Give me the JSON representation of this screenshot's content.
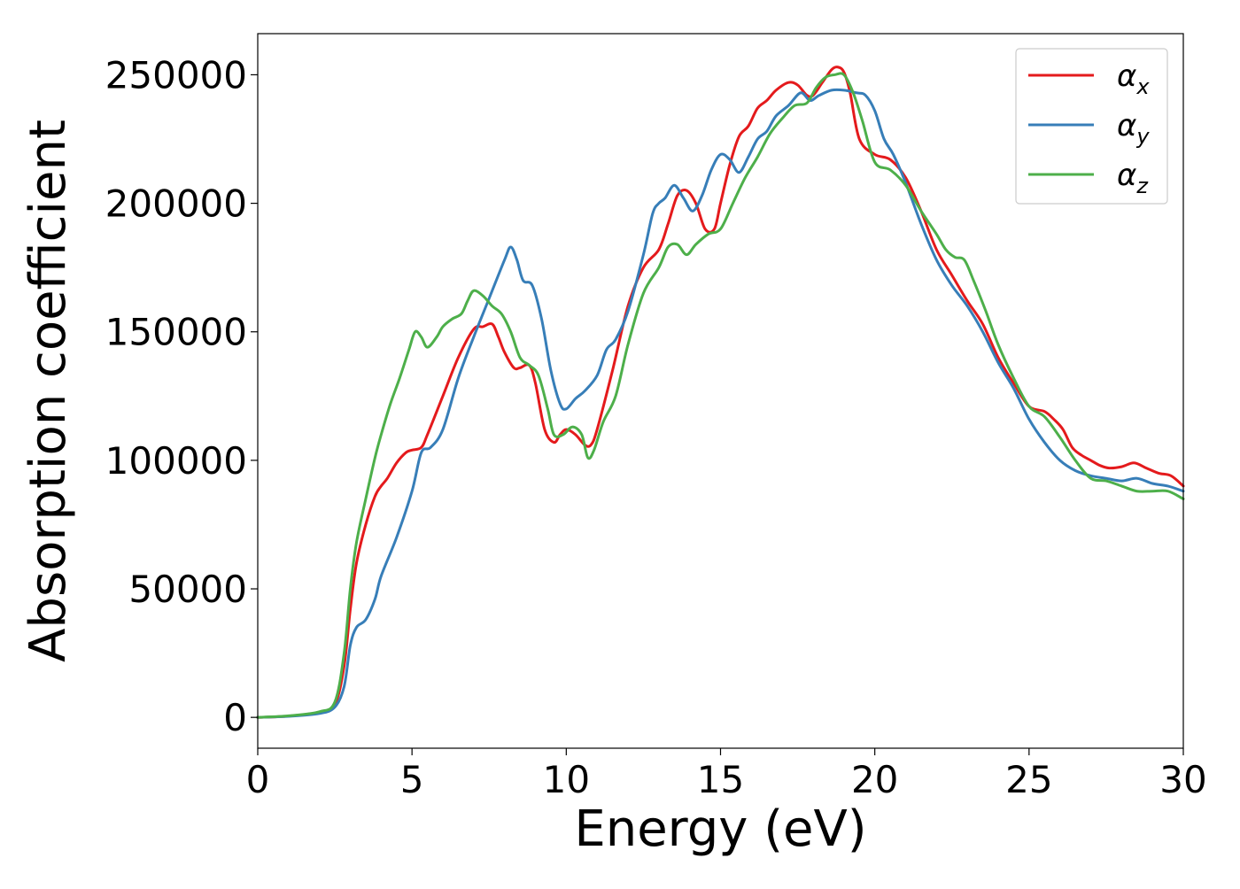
{
  "chart_data": {
    "type": "line",
    "xlabel": "Energy (eV)",
    "ylabel": "Absorption coefficient",
    "xlim": [
      0,
      30
    ],
    "ylim": [
      -12000,
      266000
    ],
    "xticks": [
      0,
      5,
      10,
      15,
      20,
      25,
      30
    ],
    "xtick_labels": [
      "0",
      "5",
      "10",
      "15",
      "20",
      "25",
      "30"
    ],
    "yticks": [
      0,
      50000,
      100000,
      150000,
      200000,
      250000
    ],
    "ytick_labels": [
      "0",
      "50000",
      "100000",
      "150000",
      "200000",
      "250000"
    ],
    "grid": false,
    "legend_position": "top-right",
    "series": [
      {
        "name": "α_x",
        "legend_base": "α",
        "legend_sub": "x",
        "color": "#e41a1c",
        "x": [
          0,
          1,
          2,
          2.5,
          2.8,
          3.0,
          3.2,
          3.5,
          3.8,
          4.0,
          4.2,
          4.5,
          4.8,
          5.0,
          5.3,
          5.5,
          6.0,
          6.5,
          7.0,
          7.3,
          7.6,
          7.8,
          8.0,
          8.3,
          8.5,
          8.8,
          9.0,
          9.3,
          9.6,
          9.8,
          10.0,
          10.3,
          10.6,
          10.8,
          11.0,
          11.5,
          12.0,
          12.5,
          13.0,
          13.3,
          13.6,
          13.9,
          14.2,
          14.5,
          14.8,
          15.0,
          15.3,
          15.6,
          15.9,
          16.2,
          16.5,
          16.8,
          17.2,
          17.5,
          17.8,
          18.0,
          18.3,
          18.6,
          18.8,
          19.0,
          19.2,
          19.5,
          20.0,
          20.5,
          21.0,
          21.5,
          22.0,
          22.5,
          23.0,
          23.5,
          24.0,
          24.5,
          25.0,
          25.5,
          25.8,
          26.1,
          26.4,
          26.7,
          27.0,
          27.3,
          27.6,
          28.0,
          28.4,
          28.8,
          29.2,
          29.6,
          30.0
        ],
        "y": [
          0,
          500,
          2000,
          5000,
          20000,
          42000,
          60000,
          75000,
          86000,
          90000,
          93000,
          99000,
          103000,
          104000,
          105000,
          110000,
          125000,
          140000,
          151000,
          152000,
          153000,
          148000,
          142000,
          136000,
          136000,
          137000,
          130000,
          112000,
          107000,
          110000,
          112000,
          110000,
          106000,
          106000,
          112000,
          135000,
          160000,
          175000,
          182000,
          192000,
          203000,
          205000,
          200000,
          190000,
          190000,
          200000,
          215000,
          226000,
          230000,
          237000,
          240000,
          244000,
          247000,
          246000,
          242000,
          242000,
          247000,
          252000,
          253000,
          251000,
          243000,
          225000,
          219000,
          217000,
          210000,
          197000,
          182000,
          172000,
          162000,
          153000,
          140000,
          130000,
          121000,
          119000,
          116000,
          112000,
          105000,
          102000,
          100000,
          98000,
          97000,
          97500,
          99000,
          97000,
          95000,
          94000,
          90000
        ]
      },
      {
        "name": "α_y",
        "legend_base": "α",
        "legend_sub": "y",
        "color": "#377eb8",
        "x": [
          0,
          1,
          2,
          2.5,
          2.8,
          3.0,
          3.2,
          3.5,
          3.8,
          4.0,
          4.5,
          5.0,
          5.3,
          5.6,
          6.0,
          6.5,
          7.0,
          7.5,
          8.0,
          8.2,
          8.4,
          8.6,
          8.9,
          9.2,
          9.5,
          9.8,
          10.0,
          10.3,
          10.6,
          11.0,
          11.3,
          11.6,
          12.0,
          12.5,
          12.8,
          13.0,
          13.2,
          13.5,
          13.8,
          14.1,
          14.4,
          14.7,
          15.0,
          15.3,
          15.6,
          15.9,
          16.2,
          16.5,
          16.8,
          17.2,
          17.6,
          17.9,
          18.2,
          18.6,
          19.0,
          19.4,
          19.7,
          20.0,
          20.3,
          20.6,
          21.0,
          21.5,
          22.0,
          22.5,
          23.0,
          23.5,
          24.0,
          24.5,
          25.0,
          25.5,
          26.0,
          26.5,
          27.0,
          27.5,
          28.0,
          28.5,
          29.0,
          29.5,
          30.0
        ],
        "y": [
          0,
          400,
          1500,
          4000,
          12000,
          28000,
          35000,
          38000,
          46000,
          55000,
          70000,
          88000,
          103000,
          105000,
          112000,
          132000,
          148000,
          163000,
          178000,
          183000,
          178000,
          170000,
          168000,
          155000,
          135000,
          122000,
          120000,
          124000,
          127000,
          133000,
          143000,
          147000,
          158000,
          180000,
          196000,
          200000,
          202000,
          207000,
          202000,
          197000,
          203000,
          213000,
          219000,
          217000,
          212000,
          218000,
          225000,
          228000,
          234000,
          238000,
          243000,
          240000,
          242000,
          244000,
          244000,
          243000,
          242000,
          236000,
          225000,
          219000,
          208000,
          192000,
          178000,
          168000,
          160000,
          150000,
          138000,
          128000,
          116000,
          107000,
          100000,
          96000,
          94000,
          93000,
          92000,
          93000,
          91000,
          90000,
          88000
        ]
      },
      {
        "name": "α_z",
        "legend_base": "α",
        "legend_sub": "z",
        "color": "#4daf4a",
        "x": [
          0,
          1,
          2,
          2.5,
          2.8,
          3.0,
          3.2,
          3.5,
          3.8,
          4.0,
          4.3,
          4.6,
          4.9,
          5.1,
          5.3,
          5.5,
          5.8,
          6.0,
          6.3,
          6.6,
          6.8,
          7.0,
          7.3,
          7.6,
          7.9,
          8.2,
          8.5,
          8.8,
          9.1,
          9.4,
          9.6,
          9.9,
          10.2,
          10.5,
          10.7,
          10.9,
          11.2,
          11.6,
          12.0,
          12.5,
          13.0,
          13.3,
          13.6,
          13.9,
          14.2,
          14.6,
          15.0,
          15.4,
          15.8,
          16.2,
          16.6,
          17.0,
          17.4,
          17.8,
          18.1,
          18.4,
          18.7,
          19.0,
          19.3,
          19.6,
          20.0,
          20.5,
          21.0,
          21.5,
          22.0,
          22.3,
          22.6,
          22.9,
          23.2,
          23.6,
          24.0,
          24.5,
          25.0,
          25.5,
          26.0,
          26.5,
          27.0,
          27.5,
          28.0,
          28.5,
          29.0,
          29.5,
          30.0
        ],
        "y": [
          0,
          600,
          2200,
          6000,
          25000,
          50000,
          68000,
          85000,
          101000,
          110000,
          122000,
          132000,
          143000,
          150000,
          148000,
          144000,
          148000,
          152000,
          155000,
          157000,
          162000,
          166000,
          164000,
          160000,
          157000,
          150000,
          140000,
          137000,
          133000,
          120000,
          110000,
          110000,
          113000,
          110000,
          101000,
          104000,
          115000,
          125000,
          145000,
          165000,
          175000,
          183000,
          184000,
          180000,
          184000,
          188000,
          190000,
          200000,
          210000,
          218000,
          227000,
          233000,
          238000,
          239000,
          245000,
          249000,
          250000,
          250000,
          243000,
          232000,
          216000,
          213000,
          207000,
          197000,
          188000,
          182000,
          179000,
          178000,
          170000,
          158000,
          145000,
          132000,
          121000,
          117000,
          109000,
          100000,
          93000,
          92000,
          90000,
          88000,
          88000,
          88000,
          85000
        ]
      }
    ]
  }
}
